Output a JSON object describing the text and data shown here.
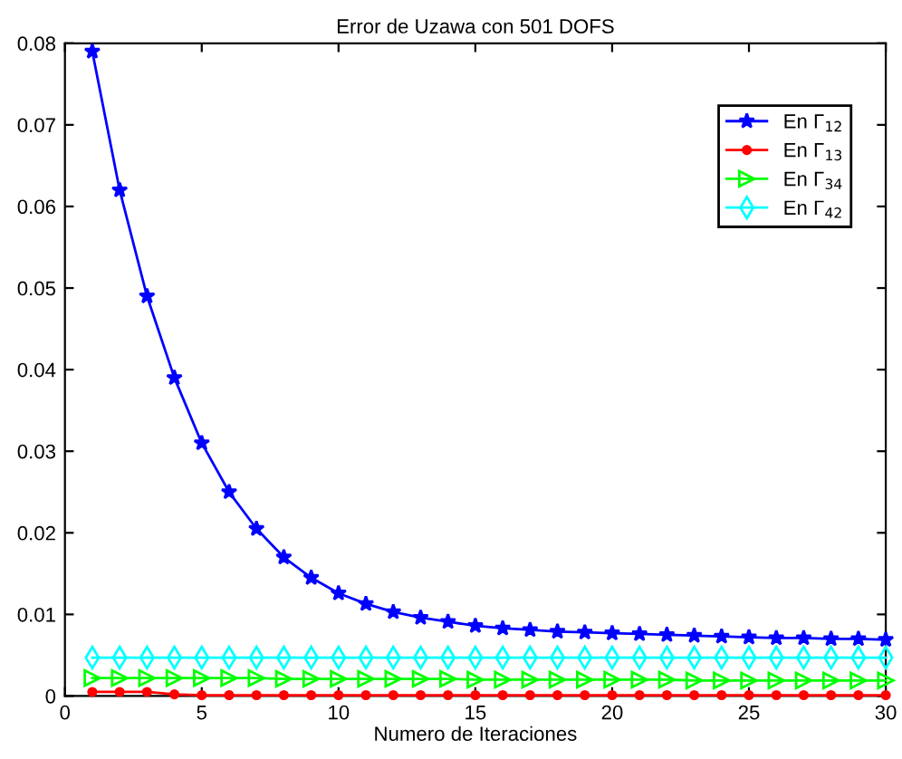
{
  "chart_data": {
    "type": "line",
    "title": "Error de Uzawa con 501 DOFS",
    "xlabel": "Numero de Iteraciones",
    "x": [
      1,
      2,
      3,
      4,
      5,
      6,
      7,
      8,
      9,
      10,
      11,
      12,
      13,
      14,
      15,
      16,
      17,
      18,
      19,
      20,
      21,
      22,
      23,
      24,
      25,
      26,
      27,
      28,
      29,
      30
    ],
    "series": [
      {
        "name": "En Γ$_{12}$",
        "color": "#0000ff",
        "marker": "star",
        "values": [
          0.079,
          0.062,
          0.049,
          0.039,
          0.031,
          0.025,
          0.0205,
          0.017,
          0.0145,
          0.0126,
          0.0113,
          0.0103,
          0.0096,
          0.0091,
          0.0086,
          0.0083,
          0.0081,
          0.0079,
          0.0078,
          0.0077,
          0.0076,
          0.0075,
          0.0074,
          0.0073,
          0.0072,
          0.0071,
          0.0071,
          0.007,
          0.007,
          0.0069
        ]
      },
      {
        "name": "En Γ$_{13}$",
        "color": "#ff0000",
        "marker": "circle",
        "values": [
          0.0005,
          0.0005,
          0.0005,
          0.0002,
          0.0001,
          0.0001,
          0.0001,
          0.0001,
          0.0001,
          0.0001,
          0.0001,
          0.0001,
          0.0001,
          0.0001,
          0.0001,
          0.0001,
          0.0001,
          0.0001,
          0.0001,
          0.0001,
          0.0001,
          0.0001,
          0.0001,
          0.0001,
          0.0001,
          0.0001,
          0.0001,
          0.0001,
          0.0001,
          0.0001
        ]
      },
      {
        "name": "En Γ$_{34}$",
        "color": "#00ff00",
        "marker": "triangle",
        "values": [
          0.0022,
          0.0022,
          0.0022,
          0.0022,
          0.0022,
          0.0022,
          0.0022,
          0.0021,
          0.0021,
          0.0021,
          0.0021,
          0.0021,
          0.0021,
          0.0021,
          0.002,
          0.002,
          0.002,
          0.002,
          0.002,
          0.002,
          0.002,
          0.002,
          0.0019,
          0.0019,
          0.0019,
          0.0019,
          0.0019,
          0.0019,
          0.0019,
          0.0019
        ]
      },
      {
        "name": "En Γ$_{42}$",
        "color": "#00ffff",
        "marker": "diamond",
        "values": [
          0.0047,
          0.0047,
          0.0047,
          0.0047,
          0.0047,
          0.0047,
          0.0047,
          0.0047,
          0.0047,
          0.0047,
          0.0047,
          0.0047,
          0.0047,
          0.0047,
          0.0047,
          0.0047,
          0.0047,
          0.0047,
          0.0047,
          0.0047,
          0.0047,
          0.0047,
          0.0047,
          0.0047,
          0.0047,
          0.0047,
          0.0047,
          0.0047,
          0.0047,
          0.0047
        ]
      }
    ],
    "xlim": [
      0,
      30
    ],
    "xticks": [
      0,
      5,
      10,
      15,
      20,
      25,
      30
    ],
    "ylim": [
      0,
      0.08
    ],
    "yticks": [
      0,
      0.01,
      0.02,
      0.03,
      0.04,
      0.05,
      0.06,
      0.07,
      0.08
    ],
    "grid": false,
    "legend": "top right",
    "line_style": "solid"
  }
}
